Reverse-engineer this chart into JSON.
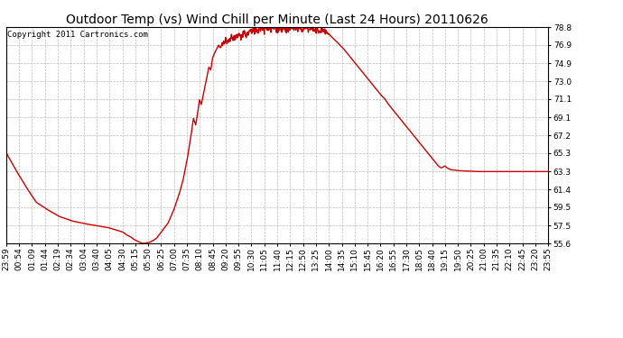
{
  "title": "Outdoor Temp (vs) Wind Chill per Minute (Last 24 Hours) 20110626",
  "copyright": "Copyright 2011 Cartronics.com",
  "line_color": "#cc0000",
  "background_color": "#ffffff",
  "plot_bg_color": "#ffffff",
  "grid_color": "#bbbbbb",
  "ylim": [
    55.6,
    78.8
  ],
  "yticks": [
    55.6,
    57.5,
    59.5,
    61.4,
    63.3,
    65.3,
    67.2,
    69.1,
    71.1,
    73.0,
    74.9,
    76.9,
    78.8
  ],
  "xtick_labels": [
    "23:59",
    "00:54",
    "01:09",
    "01:44",
    "02:19",
    "02:34",
    "03:04",
    "03:40",
    "04:05",
    "04:30",
    "05:15",
    "05:50",
    "06:25",
    "07:00",
    "07:35",
    "08:10",
    "08:45",
    "09:20",
    "09:55",
    "10:30",
    "11:05",
    "11:40",
    "12:15",
    "12:50",
    "13:25",
    "14:00",
    "14:35",
    "15:10",
    "15:45",
    "16:20",
    "16:55",
    "17:30",
    "18:05",
    "18:40",
    "19:15",
    "19:50",
    "20:25",
    "21:00",
    "21:35",
    "22:10",
    "22:45",
    "23:20",
    "23:55"
  ],
  "title_fontsize": 10,
  "copyright_fontsize": 6.5,
  "tick_fontsize": 6.5,
  "line_width": 1.0,
  "keypoints": [
    [
      0,
      65.3
    ],
    [
      25,
      63.5
    ],
    [
      55,
      61.5
    ],
    [
      80,
      60.0
    ],
    [
      110,
      59.2
    ],
    [
      140,
      58.5
    ],
    [
      175,
      58.0
    ],
    [
      210,
      57.7
    ],
    [
      240,
      57.5
    ],
    [
      270,
      57.3
    ],
    [
      295,
      57.0
    ],
    [
      310,
      56.8
    ],
    [
      320,
      56.5
    ],
    [
      330,
      56.3
    ],
    [
      340,
      56.0
    ],
    [
      350,
      55.8
    ],
    [
      358,
      55.65
    ],
    [
      365,
      55.6
    ],
    [
      372,
      55.65
    ],
    [
      380,
      55.7
    ],
    [
      390,
      55.9
    ],
    [
      400,
      56.2
    ],
    [
      415,
      57.0
    ],
    [
      430,
      57.8
    ],
    [
      445,
      59.2
    ],
    [
      460,
      61.0
    ],
    [
      470,
      62.5
    ],
    [
      480,
      64.5
    ],
    [
      490,
      67.0
    ],
    [
      497,
      69.0
    ],
    [
      503,
      68.3
    ],
    [
      508,
      69.5
    ],
    [
      513,
      71.0
    ],
    [
      518,
      70.5
    ],
    [
      523,
      71.5
    ],
    [
      528,
      72.5
    ],
    [
      533,
      73.5
    ],
    [
      538,
      74.5
    ],
    [
      543,
      74.2
    ],
    [
      548,
      75.5
    ],
    [
      553,
      76.0
    ],
    [
      558,
      76.4
    ],
    [
      563,
      76.8
    ],
    [
      568,
      76.5
    ],
    [
      573,
      76.9
    ],
    [
      578,
      77.1
    ],
    [
      583,
      77.3
    ],
    [
      588,
      77.0
    ],
    [
      593,
      77.4
    ],
    [
      598,
      77.6
    ],
    [
      603,
      77.8
    ],
    [
      608,
      77.5
    ],
    [
      613,
      77.8
    ],
    [
      618,
      78.0
    ],
    [
      623,
      77.7
    ],
    [
      628,
      78.0
    ],
    [
      633,
      78.2
    ],
    [
      638,
      77.9
    ],
    [
      643,
      78.2
    ],
    [
      648,
      78.4
    ],
    [
      653,
      78.2
    ],
    [
      658,
      78.5
    ],
    [
      663,
      78.6
    ],
    [
      668,
      78.4
    ],
    [
      673,
      78.7
    ],
    [
      678,
      78.8
    ],
    [
      683,
      78.6
    ],
    [
      688,
      78.8
    ],
    [
      693,
      78.7
    ],
    [
      698,
      78.8
    ],
    [
      703,
      78.6
    ],
    [
      708,
      78.8
    ],
    [
      713,
      78.7
    ],
    [
      718,
      78.5
    ],
    [
      723,
      78.7
    ],
    [
      728,
      78.8
    ],
    [
      733,
      78.6
    ],
    [
      738,
      78.8
    ],
    [
      743,
      78.7
    ],
    [
      748,
      78.5
    ],
    [
      753,
      78.7
    ],
    [
      758,
      78.8
    ],
    [
      763,
      78.6
    ],
    [
      768,
      78.8
    ],
    [
      775,
      78.6
    ],
    [
      780,
      78.8
    ],
    [
      788,
      78.5
    ],
    [
      793,
      78.7
    ],
    [
      798,
      78.8
    ],
    [
      803,
      78.5
    ],
    [
      808,
      78.7
    ],
    [
      813,
      78.6
    ],
    [
      818,
      78.4
    ],
    [
      823,
      78.6
    ],
    [
      828,
      78.5
    ],
    [
      833,
      78.3
    ],
    [
      838,
      78.5
    ],
    [
      843,
      78.4
    ],
    [
      850,
      78.2
    ],
    [
      858,
      78.0
    ],
    [
      865,
      77.7
    ],
    [
      870,
      77.5
    ],
    [
      878,
      77.2
    ],
    [
      885,
      76.9
    ],
    [
      895,
      76.5
    ],
    [
      905,
      76.0
    ],
    [
      915,
      75.5
    ],
    [
      925,
      75.0
    ],
    [
      935,
      74.5
    ],
    [
      945,
      74.0
    ],
    [
      955,
      73.5
    ],
    [
      965,
      73.0
    ],
    [
      975,
      72.5
    ],
    [
      985,
      72.0
    ],
    [
      995,
      71.5
    ],
    [
      1005,
      71.1
    ],
    [
      1015,
      70.5
    ],
    [
      1025,
      70.0
    ],
    [
      1035,
      69.5
    ],
    [
      1045,
      69.0
    ],
    [
      1055,
      68.5
    ],
    [
      1065,
      68.0
    ],
    [
      1075,
      67.5
    ],
    [
      1085,
      67.0
    ],
    [
      1095,
      66.5
    ],
    [
      1105,
      66.0
    ],
    [
      1115,
      65.5
    ],
    [
      1125,
      65.0
    ],
    [
      1135,
      64.5
    ],
    [
      1145,
      64.0
    ],
    [
      1150,
      63.8
    ],
    [
      1155,
      63.7
    ],
    [
      1160,
      63.8
    ],
    [
      1165,
      63.9
    ],
    [
      1170,
      63.7
    ],
    [
      1175,
      63.6
    ],
    [
      1180,
      63.5
    ],
    [
      1200,
      63.4
    ],
    [
      1250,
      63.3
    ],
    [
      1350,
      63.3
    ],
    [
      1439,
      63.3
    ]
  ]
}
